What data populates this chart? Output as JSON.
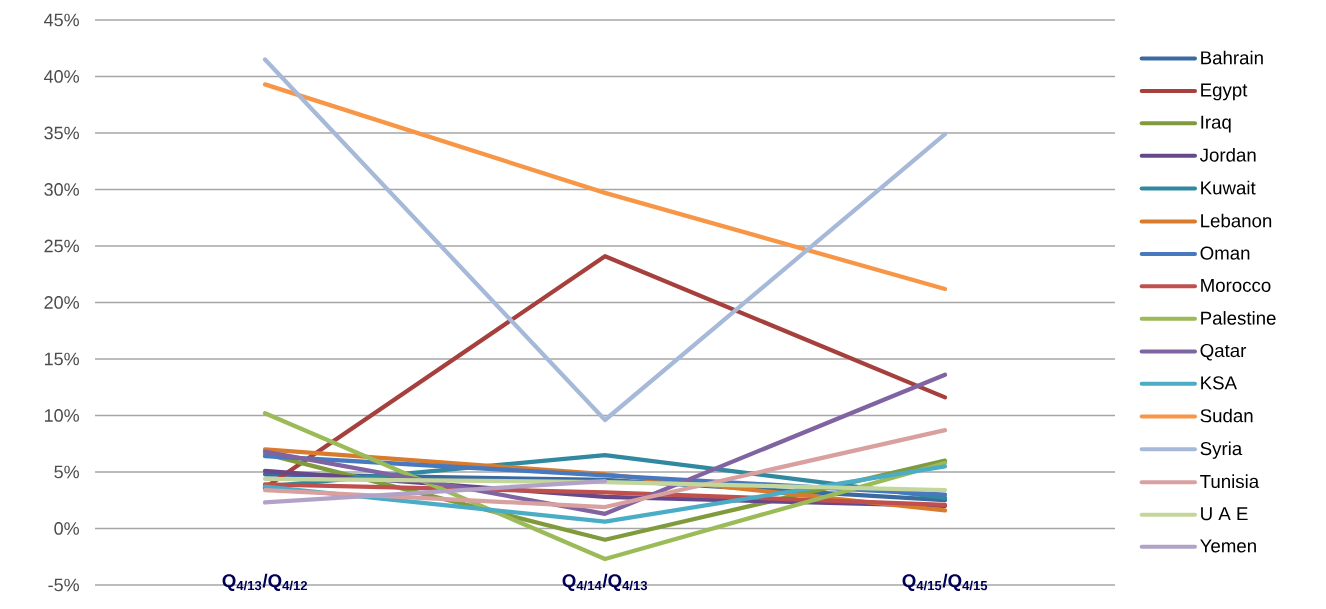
{
  "chart_data": {
    "type": "line",
    "categories": [
      "Q$_{4/13}$/Q$_{4/12}$",
      "Q$_{4/14}$/Q$_{4/13}$",
      "Q$_{4/15}$/Q$_{4/15}$"
    ],
    "series": [
      {
        "name": "Bahrain",
        "color": "#3a6aa0",
        "values": [
          4.8,
          4.3,
          2.5
        ]
      },
      {
        "name": "Egypt",
        "color": "#a5403d",
        "values": [
          3.6,
          24.1,
          11.6
        ]
      },
      {
        "name": "Iraq",
        "color": "#7f9b3c",
        "values": [
          6.6,
          -1.0,
          6.0
        ]
      },
      {
        "name": "Jordan",
        "color": "#67488a",
        "values": [
          5.1,
          2.8,
          2.0
        ]
      },
      {
        "name": "Kuwait",
        "color": "#31899f",
        "values": [
          3.7,
          6.5,
          2.7
        ]
      },
      {
        "name": "Lebanon",
        "color": "#d97b2c",
        "values": [
          7.0,
          4.8,
          1.6
        ]
      },
      {
        "name": "Oman",
        "color": "#4779be",
        "values": [
          6.4,
          4.7,
          3.0
        ]
      },
      {
        "name": "Morocco",
        "color": "#c0504d",
        "values": [
          3.9,
          3.2,
          2.1
        ]
      },
      {
        "name": "Palestine",
        "color": "#9bbb59",
        "values": [
          10.2,
          -2.7,
          5.8
        ]
      },
      {
        "name": "Qatar",
        "color": "#8064a2",
        "values": [
          6.8,
          1.3,
          13.6
        ]
      },
      {
        "name": "KSA",
        "color": "#4bacc6",
        "values": [
          3.7,
          0.6,
          5.5
        ]
      },
      {
        "name": "Sudan",
        "color": "#f79646",
        "values": [
          39.3,
          29.7,
          21.2
        ]
      },
      {
        "name": "Syria",
        "color": "#a6b9d9",
        "values": [
          41.5,
          9.6,
          34.9
        ]
      },
      {
        "name": "Tunisia",
        "color": "#d9a0a0",
        "values": [
          3.4,
          1.9,
          8.7
        ]
      },
      {
        "name": "U A E",
        "color": "#c3d69b",
        "values": [
          4.4,
          4.1,
          3.4
        ]
      },
      {
        "name": "Yemen",
        "color": "#b3a2c7",
        "values": [
          2.3,
          4.2,
          null
        ]
      }
    ],
    "ylim": [
      -5,
      45
    ],
    "yticks": [
      {
        "value": -5,
        "label": "-5%"
      },
      {
        "value": 0,
        "label": "0%"
      },
      {
        "value": 5,
        "label": "5%"
      },
      {
        "value": 10,
        "label": "10%"
      },
      {
        "value": 15,
        "label": "15%"
      },
      {
        "value": 20,
        "label": "20%"
      },
      {
        "value": 25,
        "label": "25%"
      },
      {
        "value": 30,
        "label": "30%"
      },
      {
        "value": 35,
        "label": "35%"
      },
      {
        "value": 40,
        "label": "40%"
      },
      {
        "value": 45,
        "label": "45%"
      }
    ],
    "grid": "y",
    "legend": "right",
    "line_style": "solid",
    "marker": "none"
  }
}
